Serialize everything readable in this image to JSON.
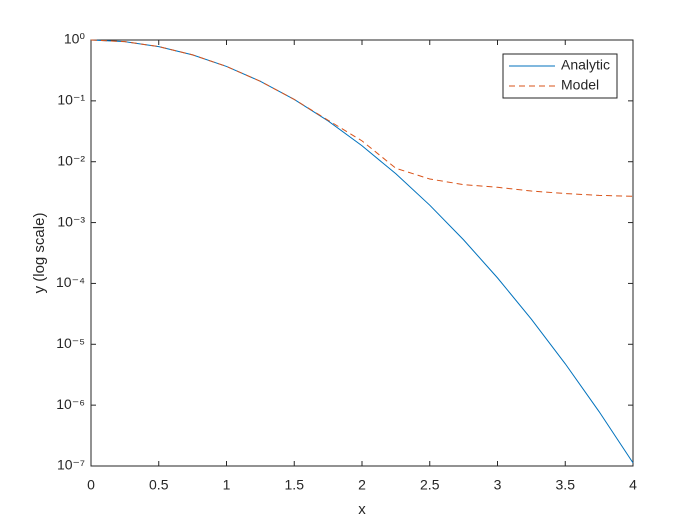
{
  "chart_data": {
    "type": "line",
    "xlabel": "x",
    "ylabel": "y (log scale)",
    "x": [
      0,
      0.25,
      0.5,
      0.75,
      1,
      1.25,
      1.5,
      1.75,
      2,
      2.25,
      2.5,
      2.75,
      3,
      3.25,
      3.5,
      3.75,
      4
    ],
    "series": [
      {
        "name": "Analytic",
        "color": "#0072BD",
        "dash": false,
        "values": [
          1,
          0.9394,
          0.7788,
          0.5698,
          0.3679,
          0.2096,
          0.1054,
          0.04677,
          0.01832,
          0.00633,
          0.00193,
          0.0005199,
          0.0001234,
          2.585e-05,
          4.785e-06,
          7.816e-07,
          1.125e-07
        ]
      },
      {
        "name": "Model",
        "color": "#D95319",
        "dash": true,
        "values": [
          1,
          0.9394,
          0.7788,
          0.5698,
          0.3679,
          0.2096,
          0.1054,
          0.048,
          0.022,
          0.0078,
          0.0052,
          0.0042,
          0.0038,
          0.0033,
          0.003,
          0.0028,
          0.0027
        ]
      }
    ],
    "xlim": [
      0,
      4
    ],
    "xticks": [
      0,
      0.5,
      1,
      1.5,
      2,
      2.5,
      3,
      3.5,
      4
    ],
    "ylim": [
      1e-07,
      1
    ],
    "ylog": true,
    "yticks": [
      {
        "value": 1e-07,
        "label": "10⁻⁷"
      },
      {
        "value": 1e-06,
        "label": "10⁻⁶"
      },
      {
        "value": 1e-05,
        "label": "10⁻⁵"
      },
      {
        "value": 0.0001,
        "label": "10⁻⁴"
      },
      {
        "value": 0.001,
        "label": "10⁻³"
      },
      {
        "value": 0.01,
        "label": "10⁻²"
      },
      {
        "value": 0.1,
        "label": "10⁻¹"
      },
      {
        "value": 1,
        "label": "10⁰"
      }
    ],
    "grid": false,
    "legend": "northeast"
  }
}
